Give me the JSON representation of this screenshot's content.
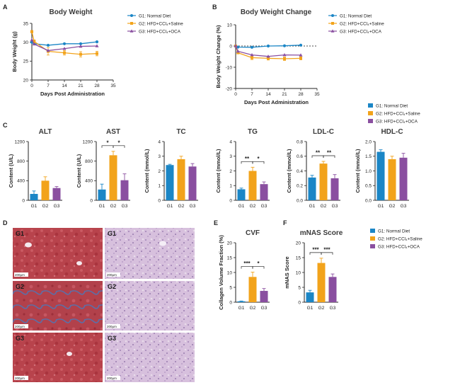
{
  "colors": {
    "g1": "#1b86c6",
    "g2": "#f2a31b",
    "g3": "#8a4fa0",
    "axis": "#222222"
  },
  "panels": {
    "A": "A",
    "B": "B",
    "C": "C",
    "D": "D",
    "E": "E",
    "F": "F"
  },
  "legend": {
    "g1": "G1: Normal Diet",
    "g2": "G2: HFD+CCl₄+Saline",
    "g3": "G3: HFD+CCl₄+OCA"
  },
  "chart_data": [
    {
      "id": "A",
      "type": "line",
      "title": "Body Weight",
      "xlabel": "Days Post Administration",
      "ylabel": "Body Weight (g)",
      "xlim": [
        0,
        35
      ],
      "ylim": [
        20,
        35
      ],
      "xticks": [
        0,
        7,
        14,
        21,
        28,
        35
      ],
      "yticks": [
        20,
        25,
        30,
        35
      ],
      "series": [
        {
          "name": "G1: Normal Diet",
          "x": [
            0,
            1,
            7,
            14,
            21,
            28
          ],
          "y": [
            30.0,
            29.6,
            29.2,
            29.6,
            29.6,
            30.1
          ]
        },
        {
          "name": "G2: HFD+CCl₄+Saline",
          "x": [
            0,
            1,
            7,
            14,
            21,
            28
          ],
          "y": [
            32.8,
            30.2,
            27.6,
            27.2,
            26.8,
            27.0
          ],
          "err": [
            0.3,
            0.4,
            1.0,
            0.6,
            0.7,
            0.6
          ]
        },
        {
          "name": "G3: HFD+CCl₄+OCA",
          "x": [
            0,
            1,
            7,
            14,
            21,
            28
          ],
          "y": [
            30.6,
            29.5,
            27.8,
            28.3,
            28.9,
            29.0
          ]
        }
      ]
    },
    {
      "id": "B",
      "type": "line",
      "title": "Body Weight Change",
      "xlabel": "Days Post Administration",
      "ylabel": "Body Weight Change (%)",
      "xlim": [
        0,
        35
      ],
      "ylim": [
        -20,
        10
      ],
      "xticks": [
        0,
        7,
        14,
        21,
        28,
        35
      ],
      "yticks": [
        -20,
        -10,
        0,
        10
      ],
      "series": [
        {
          "name": "G1: Normal Diet",
          "x": [
            0,
            1,
            7,
            14,
            21,
            28
          ],
          "y": [
            0,
            -0.5,
            -0.6,
            0,
            0.1,
            0.4
          ]
        },
        {
          "name": "G2: HFD+CCl₄+Saline",
          "x": [
            0,
            1,
            7,
            14,
            21,
            28
          ],
          "y": [
            0,
            -3.2,
            -5.5,
            -5.8,
            -6.0,
            -5.8
          ],
          "err": [
            0,
            0.5,
            0.9,
            0.8,
            0.8,
            0.7
          ]
        },
        {
          "name": "G3: HFD+CCl₄+OCA",
          "x": [
            0,
            1,
            7,
            14,
            21,
            28
          ],
          "y": [
            0,
            -2.5,
            -4.2,
            -4.9,
            -4.2,
            -4.3
          ]
        }
      ]
    },
    {
      "id": "ALT",
      "type": "bar",
      "title": "ALT",
      "ylabel": "Content (U/L)",
      "categories": [
        "G1",
        "G2",
        "G3"
      ],
      "values": [
        130,
        400,
        250
      ],
      "err": [
        60,
        80,
        30
      ],
      "ylim": [
        0,
        1200
      ],
      "yticks": [
        0,
        400,
        800,
        1200
      ],
      "sig": []
    },
    {
      "id": "AST",
      "type": "bar",
      "title": "AST",
      "ylabel": "Content (U/L)",
      "categories": [
        "G1",
        "G2",
        "G3"
      ],
      "values": [
        220,
        920,
        410
      ],
      "err": [
        110,
        80,
        130
      ],
      "ylim": [
        0,
        1200
      ],
      "yticks": [
        0,
        400,
        800,
        1200
      ],
      "sig": [
        {
          "from": 0,
          "to": 1,
          "label": "*"
        },
        {
          "from": 1,
          "to": 2,
          "label": "*"
        }
      ]
    },
    {
      "id": "TC",
      "type": "bar",
      "title": "TC",
      "ylabel": "Content (mmol/L)",
      "categories": [
        "G1",
        "G2",
        "G3"
      ],
      "values": [
        2.4,
        2.8,
        2.3
      ],
      "err": [
        0.05,
        0.2,
        0.2
      ],
      "ylim": [
        0,
        4
      ],
      "yticks": [
        0,
        1,
        2,
        3,
        4
      ],
      "sig": []
    },
    {
      "id": "TG",
      "type": "bar",
      "title": "TG",
      "ylabel": "Content (mmol/L)",
      "categories": [
        "G1",
        "G2",
        "G3"
      ],
      "values": [
        0.75,
        2.0,
        1.1
      ],
      "err": [
        0.08,
        0.25,
        0.15
      ],
      "ylim": [
        0,
        4
      ],
      "yticks": [
        0,
        1,
        2,
        3,
        4
      ],
      "sig": [
        {
          "from": 0,
          "to": 1,
          "label": "**"
        },
        {
          "from": 1,
          "to": 2,
          "label": "*"
        }
      ]
    },
    {
      "id": "LDL",
      "type": "bar",
      "title": "LDL-C",
      "ylabel": "Content (mmol/L)",
      "categories": [
        "G1",
        "G2",
        "G3"
      ],
      "values": [
        0.31,
        0.5,
        0.3
      ],
      "err": [
        0.03,
        0.03,
        0.05
      ],
      "ylim": [
        0,
        0.8
      ],
      "yticks": [
        0.0,
        0.2,
        0.4,
        0.6,
        0.8
      ],
      "sig": [
        {
          "from": 0,
          "to": 1,
          "label": "**"
        },
        {
          "from": 1,
          "to": 2,
          "label": "**"
        }
      ]
    },
    {
      "id": "HDL",
      "type": "bar",
      "title": "HDL-C",
      "ylabel": "Content (mmol/L)",
      "categories": [
        "G1",
        "G2",
        "G3"
      ],
      "values": [
        1.65,
        1.4,
        1.45
      ],
      "err": [
        0.07,
        0.1,
        0.15
      ],
      "ylim": [
        0,
        2.0
      ],
      "yticks": [
        0.0,
        0.5,
        1.0,
        1.5,
        2.0
      ],
      "sig": []
    },
    {
      "id": "CVF",
      "type": "bar",
      "title": "CVF",
      "ylabel": "Collagen Volume Fraction (%)",
      "categories": [
        "G1",
        "G2",
        "G3"
      ],
      "values": [
        0.3,
        8.5,
        3.8
      ],
      "err": [
        0.1,
        1.6,
        0.8
      ],
      "ylim": [
        0,
        20
      ],
      "yticks": [
        0,
        5,
        10,
        15,
        20
      ],
      "sig": [
        {
          "from": 0,
          "to": 1,
          "label": "***"
        },
        {
          "from": 1,
          "to": 2,
          "label": "*"
        }
      ]
    },
    {
      "id": "MNAS",
      "type": "bar",
      "title": "mNAS Score",
      "ylabel": "mNAS Score",
      "categories": [
        "G1",
        "G2",
        "G3"
      ],
      "values": [
        3.3,
        13.2,
        8.5
      ],
      "err": [
        0.7,
        1.6,
        1.0
      ],
      "ylim": [
        0,
        20
      ],
      "yticks": [
        0,
        5,
        10,
        15,
        20
      ],
      "sig": [
        {
          "from": 0,
          "to": 1,
          "label": "***"
        },
        {
          "from": 1,
          "to": 2,
          "label": "***"
        }
      ]
    }
  ],
  "histology": {
    "left_labels": [
      "G1",
      "G2",
      "G3"
    ],
    "right_labels": [
      "G1",
      "G2",
      "G3"
    ],
    "scale": "200μm"
  }
}
